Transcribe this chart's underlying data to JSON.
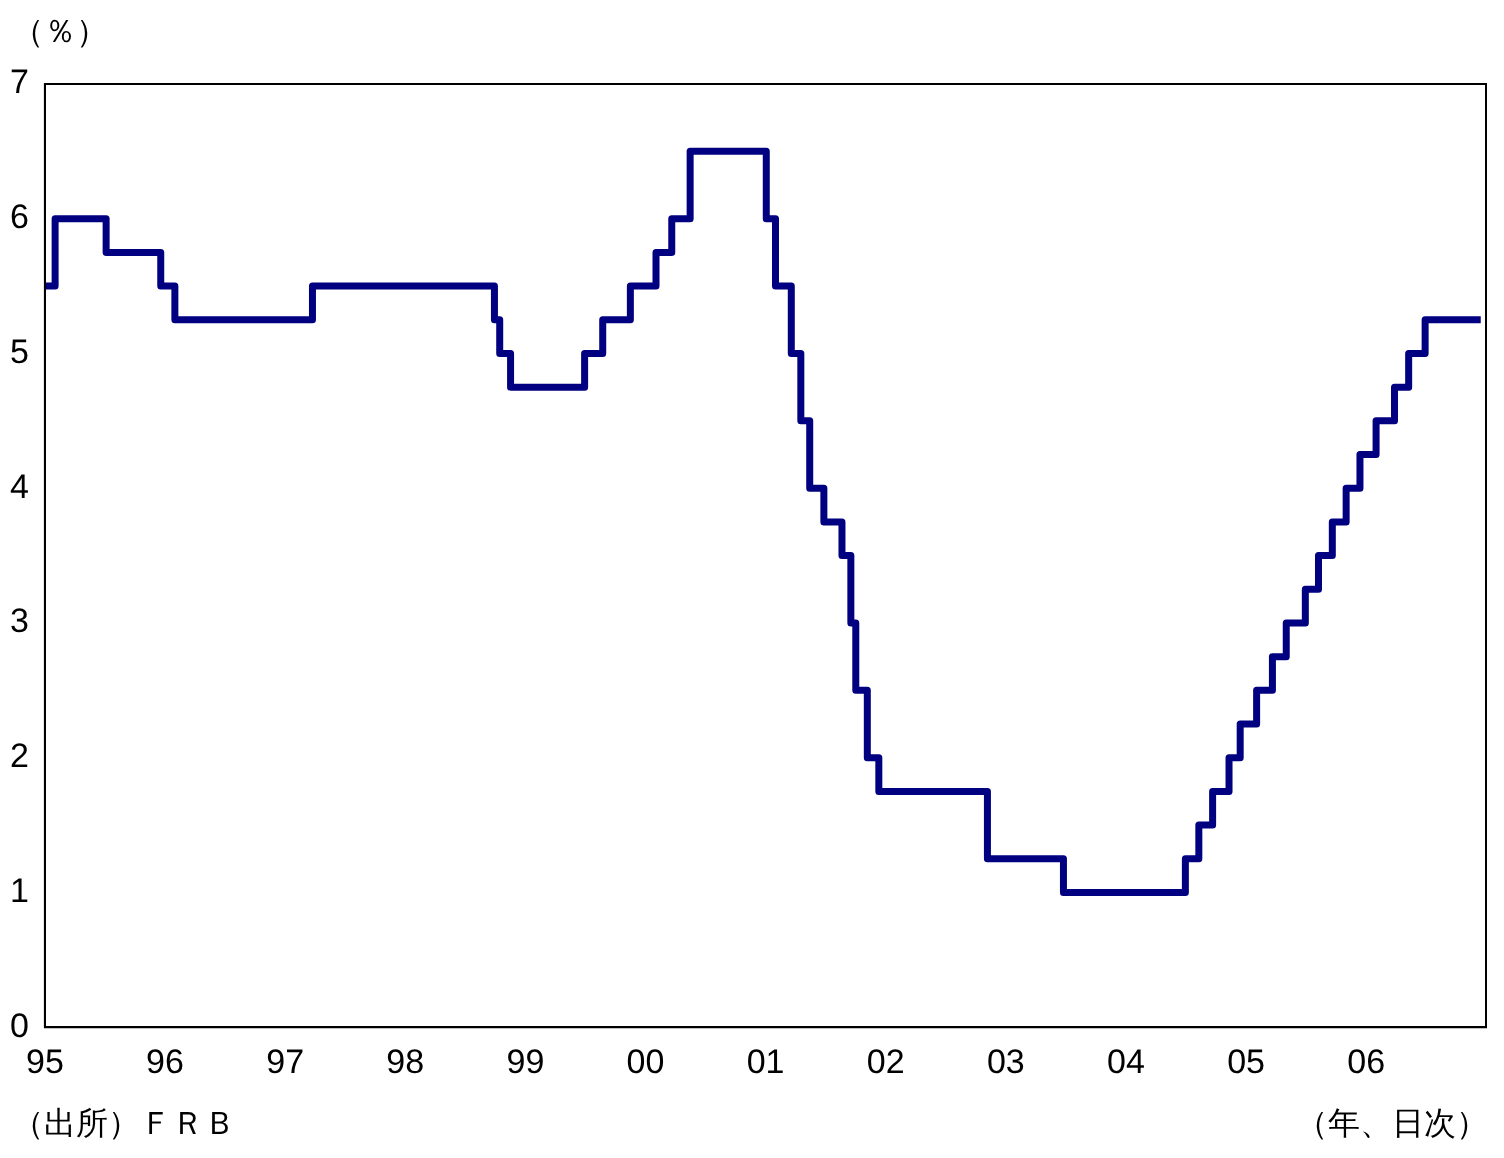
{
  "chart_data": {
    "type": "step",
    "ylabel": "（％）",
    "xlabel": "（年、日次）",
    "annotations": [
      "（出所）ＦＲＢ"
    ],
    "x": [
      "1995-01-01",
      "1995-02-01",
      "1995-07-06",
      "1995-12-19",
      "1996-01-31",
      "1997-03-25",
      "1998-09-29",
      "1998-10-15",
      "1998-11-17",
      "1999-06-30",
      "1999-08-24",
      "1999-11-16",
      "2000-02-02",
      "2000-03-21",
      "2000-05-16",
      "2001-01-03",
      "2001-01-31",
      "2001-03-20",
      "2001-04-18",
      "2001-05-15",
      "2001-06-27",
      "2001-08-21",
      "2001-09-17",
      "2001-10-02",
      "2001-11-06",
      "2001-12-11",
      "2002-11-06",
      "2003-06-25",
      "2004-06-30",
      "2004-08-10",
      "2004-09-21",
      "2004-11-10",
      "2004-12-14",
      "2005-02-02",
      "2005-03-22",
      "2005-05-03",
      "2005-06-30",
      "2005-08-09",
      "2005-09-20",
      "2005-11-01",
      "2005-12-13",
      "2006-01-31",
      "2006-03-28",
      "2006-05-10",
      "2006-06-29",
      "2006-12-15"
    ],
    "series": [
      {
        "color": "#000080",
        "values": [
          5.5,
          6,
          5.75,
          5.5,
          5.25,
          5.5,
          5.25,
          5,
          4.75,
          5,
          5.25,
          5.5,
          5.75,
          6,
          6.5,
          6,
          5.5,
          5,
          4.5,
          4,
          3.75,
          3.5,
          3,
          2.5,
          2,
          1.75,
          1.25,
          1,
          1.25,
          1.5,
          1.75,
          2,
          2.25,
          2.5,
          2.75,
          3,
          3.25,
          3.5,
          3.75,
          4,
          4.25,
          4.5,
          4.75,
          5,
          5.25,
          5.25
        ]
      }
    ],
    "xlim": [
      "1995-01-01",
      "2006-12-31"
    ],
    "xticks": [
      {
        "value": "1995",
        "label": "95"
      },
      {
        "value": "1996",
        "label": "96"
      },
      {
        "value": "1997",
        "label": "97"
      },
      {
        "value": "1998",
        "label": "98"
      },
      {
        "value": "1999",
        "label": "99"
      },
      {
        "value": "2000",
        "label": "00"
      },
      {
        "value": "2001",
        "label": "01"
      },
      {
        "value": "2002",
        "label": "02"
      },
      {
        "value": "2003",
        "label": "03"
      },
      {
        "value": "2004",
        "label": "04"
      },
      {
        "value": "2005",
        "label": "05"
      },
      {
        "value": "2006",
        "label": "06"
      }
    ],
    "ylim": [
      0,
      7
    ],
    "yticks": [
      0,
      1,
      2,
      3,
      4,
      5,
      6,
      7
    ],
    "grid": false,
    "legend": false,
    "marker": "none",
    "line_style": "solid"
  }
}
